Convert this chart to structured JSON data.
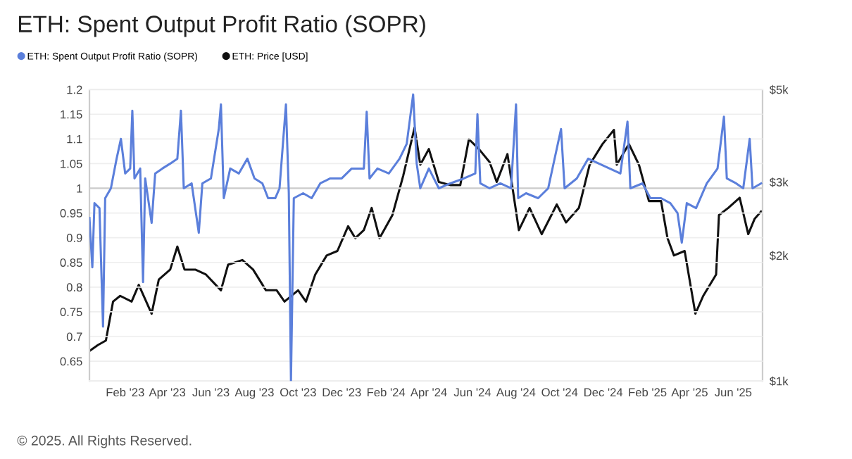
{
  "chart_data": {
    "type": "line",
    "title": "ETH: Spent Output Profit Ratio (SOPR)",
    "annotations": [
      "© 2025. All Rights Reserved."
    ],
    "legend": "top left",
    "grid": "y",
    "log": "y2",
    "marker": "none",
    "line_style": "solid",
    "xlim": [
      "2022-12-13",
      "2025-07-12"
    ],
    "xticks": [
      {
        "value": "2023-02-01",
        "label": "Feb '23"
      },
      {
        "value": "2023-04-01",
        "label": "Apr '23"
      },
      {
        "value": "2023-06-01",
        "label": "Jun '23"
      },
      {
        "value": "2023-08-01",
        "label": "Aug '23"
      },
      {
        "value": "2023-10-01",
        "label": "Oct '23"
      },
      {
        "value": "2023-12-01",
        "label": "Dec '23"
      },
      {
        "value": "2024-02-01",
        "label": "Feb '24"
      },
      {
        "value": "2024-04-01",
        "label": "Apr '24"
      },
      {
        "value": "2024-06-01",
        "label": "Jun '24"
      },
      {
        "value": "2024-08-01",
        "label": "Aug '24"
      },
      {
        "value": "2024-10-01",
        "label": "Oct '24"
      },
      {
        "value": "2024-12-01",
        "label": "Dec '24"
      },
      {
        "value": "2025-02-01",
        "label": "Feb '25"
      },
      {
        "value": "2025-04-01",
        "label": "Apr '25"
      },
      {
        "value": "2025-06-01",
        "label": "Jun '25"
      }
    ],
    "ylim": [
      0.61,
      1.2
    ],
    "yticks": [
      0.65,
      0.7,
      0.75,
      0.8,
      0.85,
      0.9,
      0.95,
      1,
      1.05,
      1.1,
      1.15,
      1.2
    ],
    "y2lim": [
      1000,
      5000
    ],
    "y2ticks": [
      {
        "value": 1000,
        "label": "$1k"
      },
      {
        "value": 2000,
        "label": "$2k"
      },
      {
        "value": 3000,
        "label": "$3k"
      },
      {
        "value": 5000,
        "label": "$5k"
      }
    ],
    "ref_lines": [
      {
        "axis": "y",
        "value": 1,
        "label": null,
        "color": "#cccccc"
      }
    ],
    "series": [
      {
        "name": "ETH: Spent Output Profit Ratio (SOPR)",
        "color": "#5b7fdb",
        "x": [
          "2022-12-13",
          "2022-12-17",
          "2022-12-20",
          "2022-12-27",
          "2023-01-01",
          "2023-01-04",
          "2023-01-12",
          "2023-01-20",
          "2023-01-26",
          "2023-02-01",
          "2023-02-08",
          "2023-02-11",
          "2023-02-14",
          "2023-02-22",
          "2023-02-26",
          "2023-03-01",
          "2023-03-10",
          "2023-03-15",
          "2023-03-25",
          "2023-04-05",
          "2023-04-15",
          "2023-04-20",
          "2023-04-24",
          "2023-05-05",
          "2023-05-15",
          "2023-05-20",
          "2023-06-01",
          "2023-06-12",
          "2023-06-15",
          "2023-06-19",
          "2023-06-28",
          "2023-07-10",
          "2023-07-22",
          "2023-08-01",
          "2023-08-12",
          "2023-08-20",
          "2023-08-30",
          "2023-09-05",
          "2023-09-14",
          "2023-09-18",
          "2023-09-21",
          "2023-09-25",
          "2023-10-08",
          "2023-10-20",
          "2023-11-01",
          "2023-11-15",
          "2023-12-01",
          "2023-12-15",
          "2024-01-01",
          "2024-01-05",
          "2024-01-09",
          "2024-01-20",
          "2024-02-05",
          "2024-02-20",
          "2024-03-01",
          "2024-03-10",
          "2024-03-15",
          "2024-03-20",
          "2024-04-01",
          "2024-04-15",
          "2024-05-01",
          "2024-05-20",
          "2024-06-05",
          "2024-06-08",
          "2024-06-12",
          "2024-06-25",
          "2024-07-10",
          "2024-07-25",
          "2024-08-01",
          "2024-08-04",
          "2024-08-15",
          "2024-09-01",
          "2024-09-15",
          "2024-10-03",
          "2024-10-08",
          "2024-10-25",
          "2024-11-10",
          "2024-11-25",
          "2024-12-10",
          "2024-12-25",
          "2025-01-04",
          "2025-01-08",
          "2025-01-25",
          "2025-02-05",
          "2025-02-20",
          "2025-03-05",
          "2025-03-15",
          "2025-03-21",
          "2025-03-28",
          "2025-04-10",
          "2025-04-25",
          "2025-05-10",
          "2025-05-19",
          "2025-05-23",
          "2025-06-05",
          "2025-06-15",
          "2025-06-24",
          "2025-06-28",
          "2025-07-10"
        ],
        "values": [
          0.94,
          0.84,
          0.97,
          0.96,
          0.72,
          0.98,
          1.0,
          1.06,
          1.1,
          1.03,
          1.04,
          1.157,
          1.02,
          1.04,
          0.81,
          1.02,
          0.93,
          1.03,
          1.04,
          1.05,
          1.06,
          1.157,
          1.0,
          1.01,
          0.91,
          1.01,
          1.02,
          1.12,
          1.17,
          0.98,
          1.04,
          1.03,
          1.06,
          1.02,
          1.01,
          0.98,
          0.98,
          1.0,
          1.17,
          0.99,
          0.61,
          0.98,
          0.99,
          0.98,
          1.01,
          1.02,
          1.02,
          1.04,
          1.04,
          1.155,
          1.02,
          1.04,
          1.03,
          1.06,
          1.09,
          1.19,
          1.05,
          1.0,
          1.04,
          1.0,
          1.01,
          1.02,
          1.03,
          1.15,
          1.01,
          1.0,
          1.01,
          1.0,
          1.17,
          0.98,
          0.99,
          0.98,
          1.0,
          1.12,
          1.0,
          1.02,
          1.06,
          1.05,
          1.04,
          1.03,
          1.135,
          1.0,
          1.01,
          0.98,
          0.98,
          0.97,
          0.95,
          0.89,
          0.97,
          0.96,
          1.01,
          1.04,
          1.145,
          1.02,
          1.01,
          1.0,
          1.1,
          1.0,
          1.01
        ]
      },
      {
        "name": "ETH: Price [USD]",
        "color": "#111111",
        "axis": "y2",
        "x": [
          "2022-12-13",
          "2022-12-25",
          "2023-01-05",
          "2023-01-15",
          "2023-01-25",
          "2023-02-10",
          "2023-02-20",
          "2023-03-10",
          "2023-03-20",
          "2023-04-05",
          "2023-04-15",
          "2023-04-25",
          "2023-05-10",
          "2023-05-25",
          "2023-06-15",
          "2023-06-25",
          "2023-07-15",
          "2023-07-30",
          "2023-08-17",
          "2023-09-01",
          "2023-09-12",
          "2023-10-01",
          "2023-10-12",
          "2023-10-25",
          "2023-11-10",
          "2023-11-25",
          "2023-12-10",
          "2023-12-20",
          "2024-01-01",
          "2024-01-12",
          "2024-01-23",
          "2024-02-10",
          "2024-02-25",
          "2024-03-12",
          "2024-03-20",
          "2024-04-01",
          "2024-04-15",
          "2024-05-01",
          "2024-05-15",
          "2024-05-27",
          "2024-06-10",
          "2024-06-25",
          "2024-07-05",
          "2024-07-20",
          "2024-08-05",
          "2024-08-20",
          "2024-09-06",
          "2024-09-27",
          "2024-10-10",
          "2024-10-28",
          "2024-11-12",
          "2024-11-30",
          "2024-12-16",
          "2024-12-20",
          "2025-01-06",
          "2025-01-20",
          "2025-02-03",
          "2025-02-20",
          "2025-03-01",
          "2025-03-10",
          "2025-03-25",
          "2025-04-09",
          "2025-04-20",
          "2025-05-08",
          "2025-05-12",
          "2025-05-25",
          "2025-06-10",
          "2025-06-22",
          "2025-07-01",
          "2025-07-10"
        ],
        "values": [
          1180,
          1220,
          1250,
          1550,
          1600,
          1550,
          1700,
          1450,
          1750,
          1850,
          2100,
          1850,
          1850,
          1800,
          1650,
          1900,
          1950,
          1850,
          1650,
          1650,
          1550,
          1650,
          1550,
          1800,
          2000,
          2050,
          2350,
          2200,
          2300,
          2600,
          2200,
          2500,
          3100,
          4050,
          3300,
          3600,
          3000,
          2950,
          2950,
          3800,
          3600,
          3350,
          3000,
          3500,
          2300,
          2600,
          2250,
          2650,
          2400,
          2600,
          3300,
          3700,
          4000,
          3300,
          3700,
          3300,
          2700,
          2700,
          2200,
          2000,
          2050,
          1450,
          1600,
          1800,
          2500,
          2600,
          2750,
          2250,
          2450,
          2550
        ]
      }
    ]
  }
}
